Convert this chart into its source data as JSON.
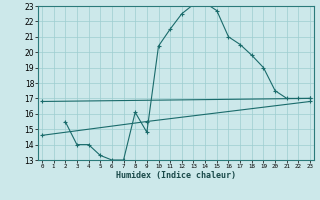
{
  "xlabel": "Humidex (Indice chaleur)",
  "bg_color": "#cce8ea",
  "grid_color": "#9ecdd0",
  "line_color": "#1a6b6b",
  "xlim": [
    -0.5,
    23.5
  ],
  "ylim": [
    13,
    23
  ],
  "xticks": [
    0,
    1,
    2,
    3,
    4,
    5,
    6,
    7,
    8,
    9,
    10,
    11,
    12,
    13,
    14,
    15,
    16,
    17,
    18,
    19,
    20,
    21,
    22,
    23
  ],
  "yticks": [
    13,
    14,
    15,
    16,
    17,
    18,
    19,
    20,
    21,
    22,
    23
  ],
  "line1_x": [
    0,
    23
  ],
  "line1_y": [
    16.8,
    17.0
  ],
  "line2_x": [
    0,
    9,
    23
  ],
  "line2_y": [
    14.6,
    15.5,
    16.8
  ],
  "line3_x": [
    2,
    3,
    4,
    5,
    6,
    7,
    8,
    9,
    10,
    11,
    12,
    13,
    14,
    15,
    16,
    17,
    18,
    19,
    20,
    21,
    22,
    23
  ],
  "line3_y": [
    15.5,
    14.0,
    14.0,
    13.3,
    13.0,
    13.0,
    16.1,
    14.8,
    20.4,
    21.5,
    22.5,
    23.1,
    23.2,
    22.7,
    21.0,
    20.5,
    19.8,
    19.0,
    17.5,
    17.0,
    17.0,
    17.0
  ]
}
